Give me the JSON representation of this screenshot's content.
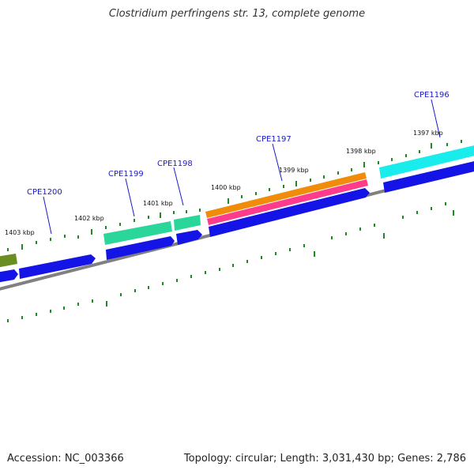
{
  "title": "Clostridium perfringens str. 13, complete genome",
  "footer": {
    "accession": "Accession: NC_003366",
    "topology": "Topology: circular; Length: 3,031,430 bp; Genes: 2,786"
  },
  "kbp_labels": [
    "1403 kbp",
    "1402 kbp",
    "1401 kbp",
    "1400 kbp",
    "1399 kbp",
    "1398 kbp",
    "1397 kbp"
  ],
  "gene_labels": [
    "CPE1200",
    "CPE1199",
    "CPE1198",
    "CPE1197",
    "CPE1196"
  ],
  "colors": {
    "backbone": "#888888",
    "ticks": "#1e8c1e",
    "cds": "#1414e6",
    "olive": "#6b8e23",
    "green": "#2bd69a",
    "orange": "#f08c0a",
    "pink": "#ff3c8c",
    "cyan": "#19ecec",
    "label": "#1a1ac8"
  }
}
